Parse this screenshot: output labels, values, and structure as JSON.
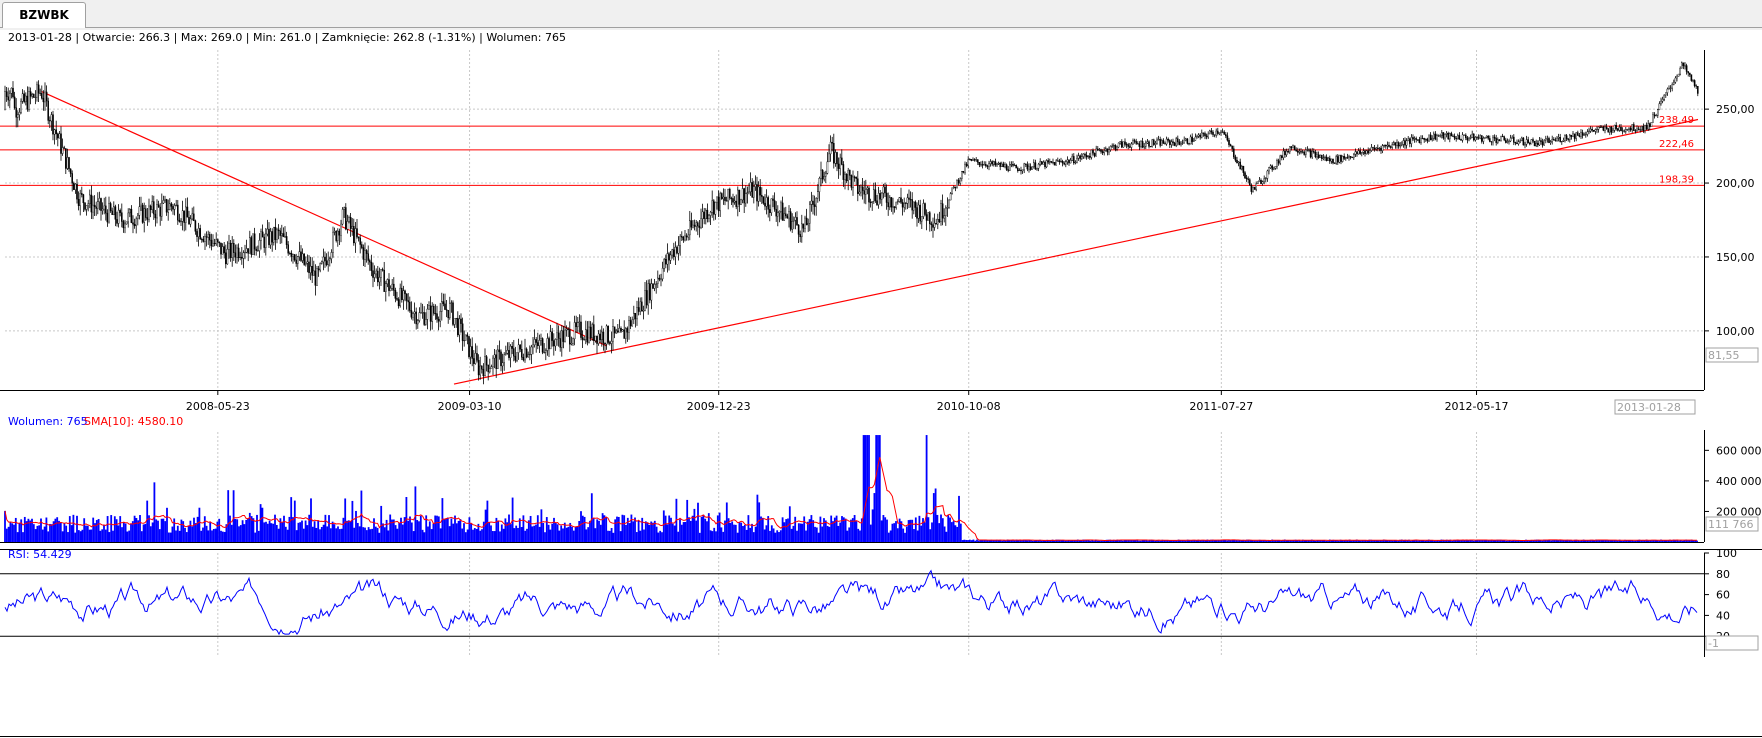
{
  "tab": {
    "label": "BZWBK"
  },
  "price_panel": {
    "info_text": "2013-01-28 | Otwarcie: 266.3 | Max: 269.0 | Min: 261.0 | Zamknięcie: 262.8 (-1.31%)  | Wolumen: 765",
    "current_marker": "81,55",
    "date_marker": "2013-01-28",
    "level_labels": [
      "238,49",
      "222,46",
      "198,39"
    ]
  },
  "volume_panel": {
    "label_volume": "Wolumen: 765",
    "label_sma": "SMA[10]: 4580.10",
    "current_marker": "111 766"
  },
  "rsi_panel": {
    "label": "RSI: 54.429",
    "current_marker": "-1"
  },
  "colors": {
    "up": "#ffffff",
    "down": "#000000",
    "lines": "#ff0000",
    "volume": "#0000ff",
    "rsi": "#0000ff",
    "grid": "#c8c8c8"
  },
  "chart_data": [
    {
      "type": "line",
      "x_ticks": [
        "2008-05-23",
        "2009-03-10",
        "2009-12-23",
        "2010-10-08",
        "2011-07-27",
        "2012-05-17"
      ],
      "ylim": [
        60,
        290
      ],
      "y_ticks": [
        100,
        150,
        200,
        250
      ],
      "horizontal_levels": [
        238.49,
        222.46,
        198.39
      ],
      "trendlines": [
        {
          "from": [
            "2007-11-01",
            262
          ],
          "to": [
            "2009-08-15",
            90
          ]
        },
        {
          "from": [
            "2009-02-20",
            64
          ],
          "to": [
            "2013-01-28",
            243
          ]
        }
      ],
      "series": [
        {
          "x": [
            "2007-10-01",
            "2007-11-01",
            "2007-12-15",
            "2008-02-01",
            "2008-04-01",
            "2008-06-01",
            "2008-08-01",
            "2008-09-15",
            "2008-10-15",
            "2008-11-20",
            "2009-01-10",
            "2009-02-15",
            "2009-03-20",
            "2009-05-01",
            "2009-07-15",
            "2009-09-01",
            "2009-11-01",
            "2009-12-15",
            "2010-02-01",
            "2010-04-01",
            "2010-05-01",
            "2010-06-01",
            "2010-08-01",
            "2010-09-01",
            "2010-10-08",
            "2010-12-01",
            "2011-02-01",
            "2011-04-01",
            "2011-06-15",
            "2011-07-27",
            "2011-09-01",
            "2011-10-15",
            "2011-12-01",
            "2012-02-01",
            "2012-04-01",
            "2012-06-01",
            "2012-08-01",
            "2012-10-01",
            "2012-12-01",
            "2013-01-10",
            "2013-01-28"
          ],
          "y": [
            250,
            262,
            190,
            175,
            185,
            152,
            165,
            135,
            178,
            140,
            110,
            115,
            75,
            85,
            100,
            95,
            155,
            185,
            195,
            168,
            222,
            196,
            185,
            175,
            215,
            210,
            215,
            226,
            228,
            236,
            195,
            225,
            215,
            225,
            232,
            230,
            227,
            236,
            238,
            280,
            262
          ]
        }
      ]
    },
    {
      "type": "bar",
      "series": [
        {
          "name": "Wolumen"
        },
        {
          "name": "SMA[10]"
        }
      ],
      "ylim": [
        0,
        720000
      ],
      "y_ticks": [
        200000,
        400000,
        600000
      ],
      "y_tick_labels": [
        "200 000",
        "400 000",
        "600 000"
      ]
    },
    {
      "type": "line",
      "series": [
        {
          "name": "RSI"
        }
      ],
      "ylim": [
        0,
        100
      ],
      "y_ticks": [
        20,
        40,
        60,
        80,
        100
      ],
      "levels": [
        80,
        20
      ]
    }
  ]
}
